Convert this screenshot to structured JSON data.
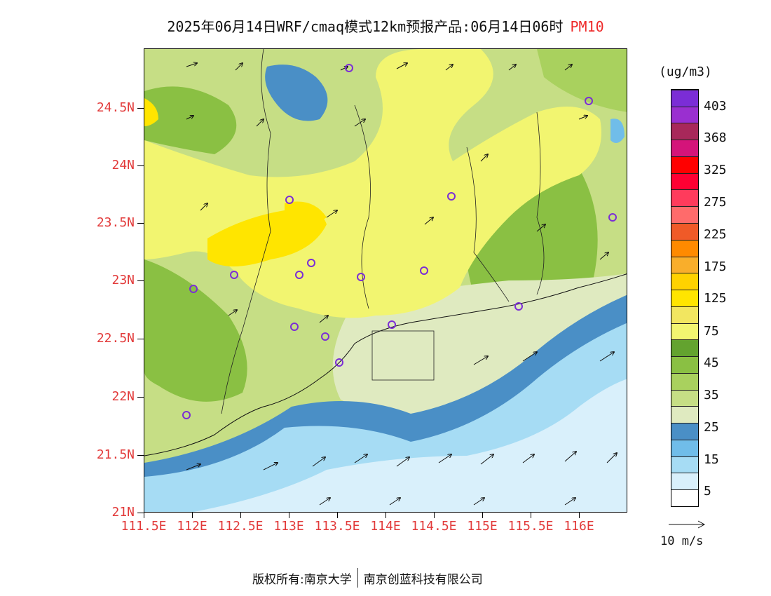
{
  "title": {
    "text": "2025年06月14日WRF/cmaq模式12km预报产品:06月14日06时",
    "variable": "PM10"
  },
  "map": {
    "lat_range": [
      21.0,
      25.0
    ],
    "lon_range": [
      111.5,
      116.5
    ],
    "y_ticks": [
      "24.5N",
      "24N",
      "23.5N",
      "23N",
      "22.5N",
      "22N",
      "21.5N",
      "21N"
    ],
    "x_ticks": [
      "111.5E",
      "112E",
      "112.5E",
      "113E",
      "113.5E",
      "114E",
      "114.5E",
      "115E",
      "115.5E",
      "116E"
    ],
    "stations_marker": "purple-circle"
  },
  "colorbar": {
    "unit": "(ug/m3)",
    "labels": [
      "5",
      "15",
      "25",
      "35",
      "45",
      "75",
      "125",
      "175",
      "225",
      "275",
      "325",
      "368",
      "403"
    ],
    "colors": [
      "#ffffff",
      "#d9f0fb",
      "#a6dcf4",
      "#70bde9",
      "#4a8fc6",
      "#dfeac0",
      "#c6de85",
      "#a9d15e",
      "#8ac043",
      "#63a32f",
      "#f2f570",
      "#f2e660",
      "#ffe500",
      "#ffd200",
      "#f9ae2b",
      "#ff8a00",
      "#f05a28",
      "#ff6b6b",
      "#ff3b5c",
      "#ff0033",
      "#ff0000",
      "#d4147a",
      "#a8285a",
      "#9a2fd0",
      "#7b2dd6"
    ]
  },
  "wind_reference": {
    "label": "10 m/s"
  },
  "footer": {
    "copyright": "版权所有:南京大学",
    "org": "南京创蓝科技有限公司"
  }
}
